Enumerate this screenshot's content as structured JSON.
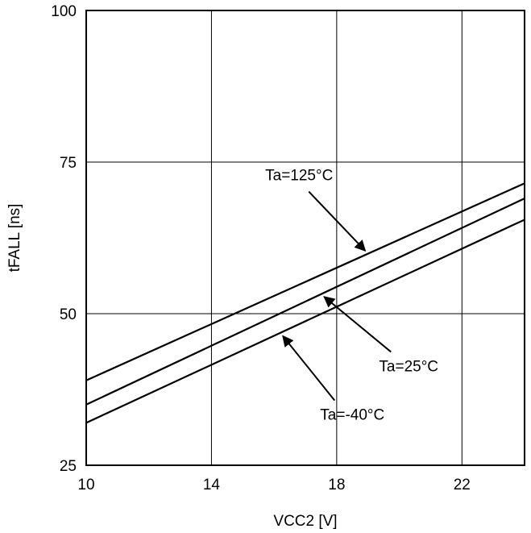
{
  "chart_data": {
    "type": "line",
    "title": "",
    "xlabel": "VCC2 [V]",
    "ylabel": "tFALL [ns]",
    "xlim": [
      10,
      24
    ],
    "ylim": [
      25,
      100
    ],
    "xticks": [
      10,
      14,
      18,
      22
    ],
    "yticks": [
      25,
      50,
      75,
      100
    ],
    "xtick_labels": [
      "10",
      "14",
      "18",
      "22"
    ],
    "ytick_labels": [
      "25",
      "50",
      "75",
      "100"
    ],
    "grid": true,
    "series": [
      {
        "name": "Ta=125°C",
        "x": [
          10,
          24
        ],
        "y": [
          39,
          71.5
        ]
      },
      {
        "name": "Ta=25°C",
        "x": [
          10,
          24
        ],
        "y": [
          35,
          69
        ]
      },
      {
        "name": "Ta=-40°C",
        "x": [
          10,
          24
        ],
        "y": [
          32,
          65.5
        ]
      }
    ],
    "annotations": [
      {
        "text": "Ta=125°C",
        "series": 0,
        "x": 19,
        "label_x": 16.8,
        "label_y": 72
      },
      {
        "text": "Ta=25°C",
        "series": 1,
        "x": 17.5,
        "label_x": 20.3,
        "label_y": 40.5
      },
      {
        "text": "Ta=-40°C",
        "series": 2,
        "x": 16.2,
        "label_x": 18.5,
        "label_y": 32.5
      }
    ]
  }
}
